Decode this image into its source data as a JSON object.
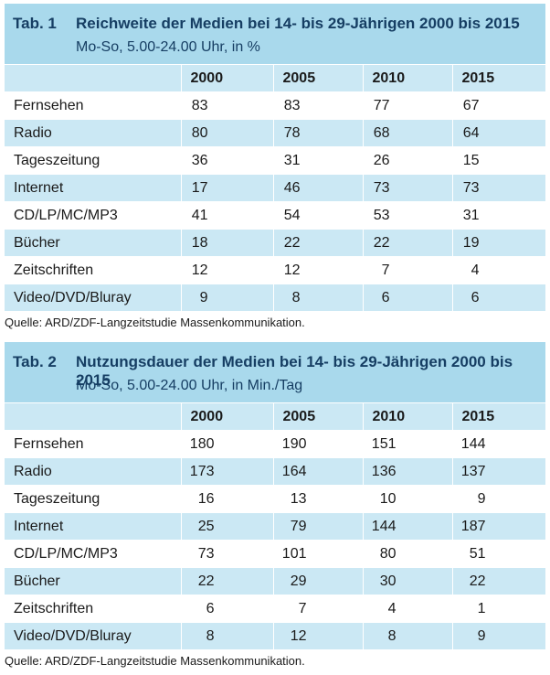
{
  "table1": {
    "label": "Tab. 1",
    "title": "Reichweite der Medien bei 14- bis 29-Jährigen 2000 bis 2015",
    "subtitle": "Mo-So, 5.00-24.00 Uhr, in %",
    "headers": [
      "",
      "2000",
      "2005",
      "2010",
      "2015"
    ],
    "rows": [
      {
        "label": "Fernsehen",
        "values": [
          "83",
          "83",
          "77",
          "67"
        ]
      },
      {
        "label": "Radio",
        "values": [
          "80",
          "78",
          "68",
          "64"
        ]
      },
      {
        "label": "Tageszeitung",
        "values": [
          "36",
          "31",
          "26",
          "15"
        ]
      },
      {
        "label": "Internet",
        "values": [
          "17",
          "46",
          "73",
          "73"
        ]
      },
      {
        "label": "CD/LP/MC/MP3",
        "values": [
          "41",
          "54",
          "53",
          "31"
        ]
      },
      {
        "label": "Bücher",
        "values": [
          "18",
          "22",
          "22",
          "19"
        ]
      },
      {
        "label": "Zeitschriften",
        "values": [
          "12",
          "12",
          "7",
          "4"
        ]
      },
      {
        "label": "Video/DVD/Bluray",
        "values": [
          "9",
          "8",
          "6",
          "6"
        ]
      }
    ],
    "source": "Quelle: ARD/ZDF-Langzeitstudie Massenkommunikation."
  },
  "table2": {
    "label": "Tab. 2",
    "title": "Nutzungsdauer der Medien bei 14- bis 29-Jährigen 2000 bis 2015",
    "subtitle": "Mo-So, 5.00-24.00 Uhr, in Min./Tag",
    "headers": [
      "",
      "2000",
      "2005",
      "2010",
      "2015"
    ],
    "rows": [
      {
        "label": "Fernsehen",
        "values": [
          "180",
          "190",
          "151",
          "144"
        ]
      },
      {
        "label": "Radio",
        "values": [
          "173",
          "164",
          "136",
          "137"
        ]
      },
      {
        "label": "Tageszeitung",
        "values": [
          "16",
          "13",
          "10",
          "9"
        ]
      },
      {
        "label": "Internet",
        "values": [
          "25",
          "79",
          "144",
          "187"
        ]
      },
      {
        "label": "CD/LP/MC/MP3",
        "values": [
          "73",
          "101",
          "80",
          "51"
        ]
      },
      {
        "label": "Bücher",
        "values": [
          "22",
          "29",
          "30",
          "22"
        ]
      },
      {
        "label": "Zeitschriften",
        "values": [
          "6",
          "7",
          "4",
          "1"
        ]
      },
      {
        "label": "Video/DVD/Bluray",
        "values": [
          "8",
          "12",
          "8",
          "9"
        ]
      }
    ],
    "source": "Quelle: ARD/ZDF-Langzeitstudie Massenkommunikation."
  }
}
